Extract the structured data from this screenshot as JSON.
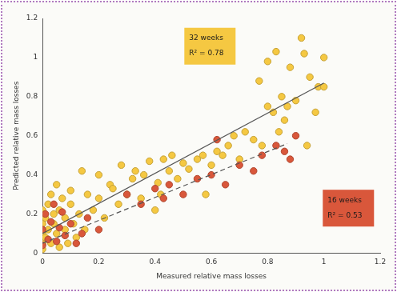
{
  "chart_data": {
    "type": "scatter",
    "x_label": "Measured relative mass losses",
    "y_label": "Predicted relative mass losses",
    "xlim": [
      0,
      1.2
    ],
    "ylim": [
      0,
      1.2
    ],
    "xticks": [
      0,
      0.2,
      0.4,
      0.6,
      0.8,
      1,
      1.2
    ],
    "yticks": [
      0,
      0.2,
      0.4,
      0.6,
      0.8,
      1,
      1.2
    ],
    "grid": false,
    "series": [
      {
        "name": "32 weeks",
        "color": "#f5c842",
        "marker": "circle",
        "annotation": "R² = 0.78",
        "x": [
          0,
          0,
          0,
          0,
          0,
          0.01,
          0.01,
          0.02,
          0.02,
          0.03,
          0.03,
          0.04,
          0.04,
          0.05,
          0.05,
          0.06,
          0.06,
          0.07,
          0.08,
          0.08,
          0.09,
          0.1,
          0.1,
          0.11,
          0.12,
          0.13,
          0.14,
          0.15,
          0.16,
          0.18,
          0.2,
          0.2,
          0.22,
          0.24,
          0.25,
          0.27,
          0.28,
          0.3,
          0.32,
          0.33,
          0.35,
          0.36,
          0.38,
          0.4,
          0.41,
          0.42,
          0.43,
          0.45,
          0.46,
          0.48,
          0.5,
          0.52,
          0.55,
          0.57,
          0.58,
          0.6,
          0.62,
          0.64,
          0.66,
          0.68,
          0.7,
          0.72,
          0.75,
          0.77,
          0.78,
          0.8,
          0.8,
          0.82,
          0.83,
          0.84,
          0.85,
          0.86,
          0.87,
          0.88,
          0.9,
          0.92,
          0.93,
          0.94,
          0.95,
          0.97,
          0.98,
          1,
          1
        ],
        "values": [
          0.02,
          0.05,
          0.1,
          0.15,
          0.22,
          0.08,
          0.18,
          0.12,
          0.25,
          0.05,
          0.3,
          0.15,
          0.2,
          0.1,
          0.35,
          0.03,
          0.22,
          0.28,
          0.12,
          0.18,
          0.05,
          0.25,
          0.32,
          0.15,
          0.08,
          0.2,
          0.42,
          0.12,
          0.3,
          0.22,
          0.28,
          0.4,
          0.18,
          0.35,
          0.33,
          0.25,
          0.45,
          0.3,
          0.38,
          0.42,
          0.28,
          0.4,
          0.47,
          0.22,
          0.36,
          0.3,
          0.48,
          0.42,
          0.5,
          0.38,
          0.46,
          0.43,
          0.48,
          0.5,
          0.3,
          0.45,
          0.52,
          0.5,
          0.55,
          0.6,
          0.48,
          0.62,
          0.58,
          0.88,
          0.55,
          0.75,
          0.98,
          0.72,
          1.03,
          0.62,
          0.8,
          0.68,
          0.75,
          0.95,
          0.78,
          1.1,
          1.02,
          0.55,
          0.9,
          0.72,
          0.85,
          1.0,
          0.85
        ],
        "fit": {
          "x": [
            0,
            1
          ],
          "values": [
            0.1,
            0.87
          ],
          "line_style": "solid"
        }
      },
      {
        "name": "16 weeks",
        "color": "#d9573b",
        "marker": "circle",
        "annotation": "R² = 0.53",
        "x": [
          0,
          0,
          0.01,
          0.02,
          0.03,
          0.04,
          0.05,
          0.06,
          0.07,
          0.08,
          0.1,
          0.12,
          0.14,
          0.16,
          0.2,
          0.3,
          0.35,
          0.4,
          0.43,
          0.45,
          0.5,
          0.55,
          0.6,
          0.62,
          0.65,
          0.7,
          0.75,
          0.78,
          0.83,
          0.86,
          0.88,
          0.9
        ],
        "values": [
          0.04,
          0.12,
          0.2,
          0.07,
          0.16,
          0.25,
          0.06,
          0.13,
          0.21,
          0.09,
          0.15,
          0.05,
          0.1,
          0.18,
          0.12,
          0.3,
          0.25,
          0.33,
          0.28,
          0.35,
          0.3,
          0.38,
          0.4,
          0.58,
          0.35,
          0.45,
          0.42,
          0.5,
          0.55,
          0.52,
          0.48,
          0.6
        ],
        "fit": {
          "x": [
            0,
            0.87
          ],
          "values": [
            0.05,
            0.56
          ],
          "line_style": "dashed"
        }
      }
    ]
  }
}
